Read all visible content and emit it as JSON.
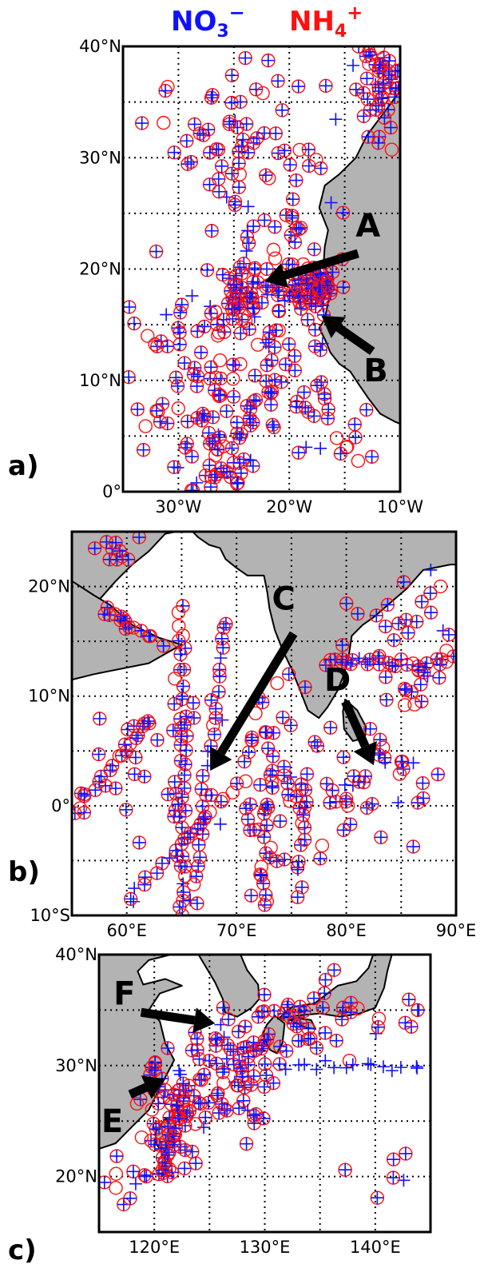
{
  "legend": {
    "no3": {
      "base": "NO",
      "sub": "3",
      "sup": "−",
      "color": "#1010ff"
    },
    "nh4": {
      "base": "NH",
      "sub": "4",
      "sup": "+",
      "color": "#ff1010"
    }
  },
  "colors": {
    "land": "#b3b3b3",
    "frame": "#000000"
  },
  "panels": [
    {
      "id": "a",
      "label": "a)",
      "lon": [
        -35,
        -10
      ],
      "lat": [
        0,
        40
      ],
      "xticks": [
        {
          "v": -30,
          "t": "30°W"
        },
        {
          "v": -20,
          "t": "20°W"
        },
        {
          "v": -10,
          "t": "10°W"
        }
      ],
      "yticks": [
        {
          "v": 0,
          "t": "0°"
        },
        {
          "v": 10,
          "t": "10°N"
        },
        {
          "v": 20,
          "t": "20°N"
        },
        {
          "v": 30,
          "t": "30°N"
        },
        {
          "v": 40,
          "t": "40°N"
        }
      ],
      "gridx": [
        -30,
        -25,
        -20,
        -15,
        -10
      ],
      "gridy": [
        5,
        10,
        15,
        20,
        25,
        30,
        35
      ],
      "land": [
        [
          [
            -10,
            40
          ],
          [
            -10,
            36
          ],
          [
            -11.5,
            34
          ],
          [
            -13,
            32
          ],
          [
            -14,
            30
          ],
          [
            -15.5,
            28.5
          ],
          [
            -16.8,
            27.5
          ],
          [
            -17.3,
            25.5
          ],
          [
            -16.5,
            23.5
          ],
          [
            -16.8,
            22
          ],
          [
            -16.9,
            20.5
          ],
          [
            -16.3,
            19
          ],
          [
            -16.5,
            17
          ],
          [
            -16.8,
            15.5
          ],
          [
            -17.3,
            14.7
          ],
          [
            -16.7,
            13.5
          ],
          [
            -16.3,
            12.5
          ],
          [
            -15.5,
            11.5
          ],
          [
            -14.5,
            10.8
          ],
          [
            -13.7,
            9.6
          ],
          [
            -12.8,
            8.3
          ],
          [
            -11.8,
            7
          ],
          [
            -10.5,
            6.3
          ],
          [
            -10,
            6.1
          ],
          [
            -10,
            40
          ]
        ]
      ],
      "arrows": [
        {
          "name": "A",
          "label": "A",
          "from": [
            -13.8,
            21.4
          ],
          "to": [
            -22.2,
            18.9
          ],
          "label_at": [
            -12.9,
            23.7
          ]
        },
        {
          "name": "B",
          "label": "B",
          "from": [
            -12.5,
            12.6
          ],
          "to": [
            -17.1,
            15.8
          ],
          "label_at": [
            -12.2,
            10.7
          ]
        }
      ],
      "seed": 11,
      "clusters": [
        {
          "lon": -18,
          "lat": 18.5,
          "sl": 1.2,
          "st": 1.2,
          "n": 70
        },
        {
          "lon": -24,
          "lat": 17.5,
          "sl": 1.4,
          "st": 1.3,
          "n": 40
        },
        {
          "lon": -26,
          "lat": 2,
          "sl": 1.2,
          "st": 2.2,
          "n": 35
        },
        {
          "lon": -22,
          "lat": 26,
          "sl": 4,
          "st": 7,
          "n": 80
        },
        {
          "lon": -29,
          "lat": 10,
          "sl": 3.5,
          "st": 4.5,
          "n": 80
        },
        {
          "lon": -20,
          "lat": 10,
          "sl": 2.5,
          "st": 3.5,
          "n": 45
        },
        {
          "lon": -12,
          "lat": 37,
          "sl": 1.5,
          "st": 2.5,
          "n": 50
        },
        {
          "lon": -15,
          "lat": 4,
          "sl": 2,
          "st": 2,
          "n": 12
        },
        {
          "lon": -27,
          "lat": 33,
          "sl": 4,
          "st": 3,
          "n": 30
        }
      ]
    },
    {
      "id": "b",
      "label": "b)",
      "lon": [
        55,
        90
      ],
      "lat": [
        -10,
        25
      ],
      "xticks": [
        {
          "v": 60,
          "t": "60°E"
        },
        {
          "v": 70,
          "t": "70°E"
        },
        {
          "v": 80,
          "t": "80°E"
        },
        {
          "v": 90,
          "t": "90°E"
        }
      ],
      "yticks": [
        {
          "v": -10,
          "t": "10°S"
        },
        {
          "v": 0,
          "t": "0°"
        },
        {
          "v": 10,
          "t": "10°N"
        },
        {
          "v": 20,
          "t": "20°N"
        }
      ],
      "gridx": [
        60,
        65,
        70,
        75,
        80,
        85
      ],
      "gridy": [
        -5,
        0,
        5,
        10,
        15,
        20
      ],
      "land": [
        [
          [
            55,
            25
          ],
          [
            55,
            17
          ],
          [
            56,
            17.8
          ],
          [
            57.5,
            18.8
          ],
          [
            59,
            20.5
          ],
          [
            60.5,
            22
          ],
          [
            62,
            23.2
          ],
          [
            63.5,
            24.8
          ],
          [
            64.5,
            25
          ],
          [
            55,
            25
          ]
        ],
        [
          [
            55,
            20.5
          ],
          [
            57,
            19.2
          ],
          [
            58.5,
            18.3
          ],
          [
            60.5,
            16.5
          ],
          [
            63,
            15.3
          ],
          [
            65,
            14.7
          ],
          [
            62,
            13
          ],
          [
            57,
            12
          ],
          [
            55,
            11.5
          ]
        ],
        [
          [
            66,
            25
          ],
          [
            66.5,
            24.5
          ],
          [
            67.5,
            23.8
          ],
          [
            68.5,
            23.5
          ],
          [
            69,
            22.5
          ],
          [
            70,
            21.7
          ],
          [
            71,
            21
          ],
          [
            72.5,
            21
          ],
          [
            72.8,
            19.5
          ],
          [
            73,
            18
          ],
          [
            73.5,
            16
          ],
          [
            74.2,
            14.2
          ],
          [
            75,
            12.5
          ],
          [
            75.8,
            10.5
          ],
          [
            76.5,
            8.7
          ],
          [
            77.5,
            8
          ],
          [
            78.3,
            9
          ],
          [
            79.2,
            10.5
          ],
          [
            79.8,
            12
          ],
          [
            80.2,
            13.5
          ],
          [
            80.5,
            15.5
          ],
          [
            81.5,
            16.5
          ],
          [
            82.5,
            17.2
          ],
          [
            84,
            18.5
          ],
          [
            85.5,
            19.8
          ],
          [
            87,
            21.5
          ],
          [
            88.5,
            21.8
          ],
          [
            89.5,
            22
          ],
          [
            90,
            22
          ],
          [
            90,
            25
          ],
          [
            66,
            25
          ]
        ],
        [
          [
            79.9,
            9.7
          ],
          [
            81,
            8.7
          ],
          [
            81.8,
            7.2
          ],
          [
            81.7,
            6.2
          ],
          [
            80.6,
            5.9
          ],
          [
            79.8,
            7
          ],
          [
            79.7,
            8.6
          ],
          [
            79.9,
            9.7
          ]
        ]
      ],
      "arrows": [
        {
          "name": "C",
          "label": "C",
          "from": [
            75.2,
            15.7
          ],
          "to": [
            67.6,
            3.2
          ],
          "label_at": [
            74.3,
            18.7
          ]
        },
        {
          "name": "D",
          "label": "D",
          "from": [
            79.9,
            9.5
          ],
          "to": [
            82.5,
            3.7
          ],
          "label_at": [
            79.2,
            11.3
          ]
        }
      ],
      "seed": 23,
      "lines": [
        {
          "from": [
            65,
            18
          ],
          "to": [
            65,
            -10
          ],
          "n": 40
        },
        {
          "from": [
            69,
            17
          ],
          "to": [
            66,
            -9
          ],
          "n": 30
        },
        {
          "from": [
            55,
            -1
          ],
          "to": [
            62,
            8
          ],
          "n": 18
        },
        {
          "from": [
            60,
            -9
          ],
          "to": [
            70,
            2
          ],
          "n": 20
        },
        {
          "from": [
            72.5,
            -10
          ],
          "to": [
            73,
            5
          ],
          "n": 22
        },
        {
          "from": [
            58,
            18
          ],
          "to": [
            62,
            15.5
          ],
          "n": 14
        },
        {
          "from": [
            78,
            13
          ],
          "to": [
            89,
            13
          ],
          "n": 24
        },
        {
          "from": [
            75.5,
            -8
          ],
          "to": [
            76.5,
            3
          ],
          "n": 14
        }
      ],
      "clusters": [
        {
          "lon": 74,
          "lat": 2,
          "sl": 2.5,
          "st": 4,
          "n": 50
        },
        {
          "lon": 84,
          "lat": 15,
          "sl": 3.5,
          "st": 3.5,
          "n": 40
        },
        {
          "lon": 84,
          "lat": 3,
          "sl": 2.5,
          "st": 3,
          "n": 30
        },
        {
          "lon": 58.5,
          "lat": 23,
          "sl": 1.2,
          "st": 1,
          "n": 10
        },
        {
          "lon": 62,
          "lat": 4,
          "sl": 3,
          "st": 6,
          "n": 30
        },
        {
          "lon": 80,
          "lat": 0,
          "sl": 1,
          "st": 1.8,
          "n": 10
        }
      ]
    },
    {
      "id": "c",
      "label": "c)",
      "lon": [
        115,
        145
      ],
      "lat": [
        15,
        40
      ],
      "xticks": [
        {
          "v": 120,
          "t": "120°E"
        },
        {
          "v": 130,
          "t": "130°E"
        },
        {
          "v": 140,
          "t": "140°E"
        }
      ],
      "yticks": [
        {
          "v": 20,
          "t": "20°N"
        },
        {
          "v": 30,
          "t": "30°N"
        },
        {
          "v": 40,
          "t": "40°N"
        }
      ],
      "gridx": [
        120,
        125,
        130,
        135,
        140
      ],
      "gridy": [
        20,
        25,
        30,
        35
      ],
      "land": [
        [
          [
            115,
            40
          ],
          [
            115,
            22.5
          ],
          [
            116.5,
            23
          ],
          [
            118,
            24.5
          ],
          [
            119.5,
            26
          ],
          [
            120.5,
            28
          ],
          [
            121.8,
            30.5
          ],
          [
            121,
            32
          ],
          [
            120.5,
            34
          ],
          [
            119.5,
            35
          ],
          [
            120.5,
            36.5
          ],
          [
            122.5,
            37.2
          ],
          [
            121,
            37.8
          ],
          [
            119,
            37.3
          ],
          [
            118.5,
            38.5
          ],
          [
            119.5,
            39.5
          ],
          [
            121.5,
            40
          ],
          [
            115,
            40
          ]
        ],
        [
          [
            124,
            40
          ],
          [
            125.5,
            37.5
          ],
          [
            126.2,
            36
          ],
          [
            126.4,
            34.8
          ],
          [
            127.5,
            34.4
          ],
          [
            128.8,
            35.2
          ],
          [
            129.5,
            36
          ],
          [
            129.4,
            37.3
          ],
          [
            128.4,
            38.6
          ],
          [
            127.8,
            40
          ],
          [
            124,
            40
          ]
        ],
        [
          [
            130.9,
            34.5
          ],
          [
            131.8,
            33.8
          ],
          [
            131.6,
            32
          ],
          [
            131.1,
            31.1
          ],
          [
            130.5,
            31.4
          ],
          [
            129.8,
            32.8
          ],
          [
            130.2,
            33.7
          ],
          [
            130.9,
            34.5
          ]
        ],
        [
          [
            131.2,
            34.2
          ],
          [
            133,
            34.5
          ],
          [
            135,
            34.7
          ],
          [
            136.8,
            34.4
          ],
          [
            138.6,
            34.7
          ],
          [
            140,
            35.2
          ],
          [
            140.8,
            37
          ],
          [
            141.1,
            38.5
          ],
          [
            141.5,
            40
          ],
          [
            139.8,
            40
          ],
          [
            139.4,
            38.8
          ],
          [
            138.3,
            37.6
          ],
          [
            136.6,
            37.2
          ],
          [
            134.5,
            35.6
          ],
          [
            132.5,
            35.3
          ],
          [
            131.2,
            34.2
          ]
        ],
        [
          [
            132.3,
            34.1
          ],
          [
            133.8,
            33.4
          ],
          [
            134.6,
            33.3
          ],
          [
            134.2,
            34.1
          ],
          [
            132.8,
            34.3
          ],
          [
            132.3,
            34.1
          ]
        ],
        [
          [
            121,
            25.2
          ],
          [
            122,
            25
          ],
          [
            121.6,
            23.5
          ],
          [
            120.8,
            22.1
          ],
          [
            120.2,
            22.9
          ],
          [
            120.1,
            24
          ],
          [
            121,
            25.2
          ]
        ]
      ],
      "arrows": [
        {
          "name": "F",
          "label": "F",
          "from": [
            118.8,
            34.8
          ],
          "to": [
            125.5,
            33.8
          ],
          "label_at": [
            117.3,
            36.3
          ]
        },
        {
          "name": "E",
          "label": "E",
          "from": [
            117.8,
            27.4
          ],
          "to": [
            121,
            28.8
          ],
          "label_at": [
            116.2,
            24.8
          ]
        }
      ],
      "seed": 37,
      "lines": [
        {
          "from": [
            132,
            30
          ],
          "to": [
            145,
            30
          ],
          "n": 16,
          "blueOnly": true
        },
        {
          "from": [
            121,
            20
          ],
          "to": [
            122.5,
            29
          ],
          "n": 22
        }
      ],
      "clusters": [
        {
          "lon": 121.5,
          "lat": 25.5,
          "sl": 1.3,
          "st": 2.5,
          "n": 55
        },
        {
          "lon": 127.5,
          "lat": 30.5,
          "sl": 2.2,
          "st": 2,
          "n": 55
        },
        {
          "lon": 131,
          "lat": 34.5,
          "sl": 2,
          "st": 1.2,
          "n": 25
        },
        {
          "lon": 138,
          "lat": 34,
          "sl": 4,
          "st": 2.5,
          "n": 28
        },
        {
          "lon": 118,
          "lat": 20,
          "sl": 2,
          "st": 1.2,
          "n": 14
        },
        {
          "lon": 127,
          "lat": 26,
          "sl": 1.8,
          "st": 1.5,
          "n": 14
        },
        {
          "lon": 141,
          "lat": 20,
          "sl": 1.2,
          "st": 1.5,
          "n": 6
        }
      ]
    }
  ]
}
